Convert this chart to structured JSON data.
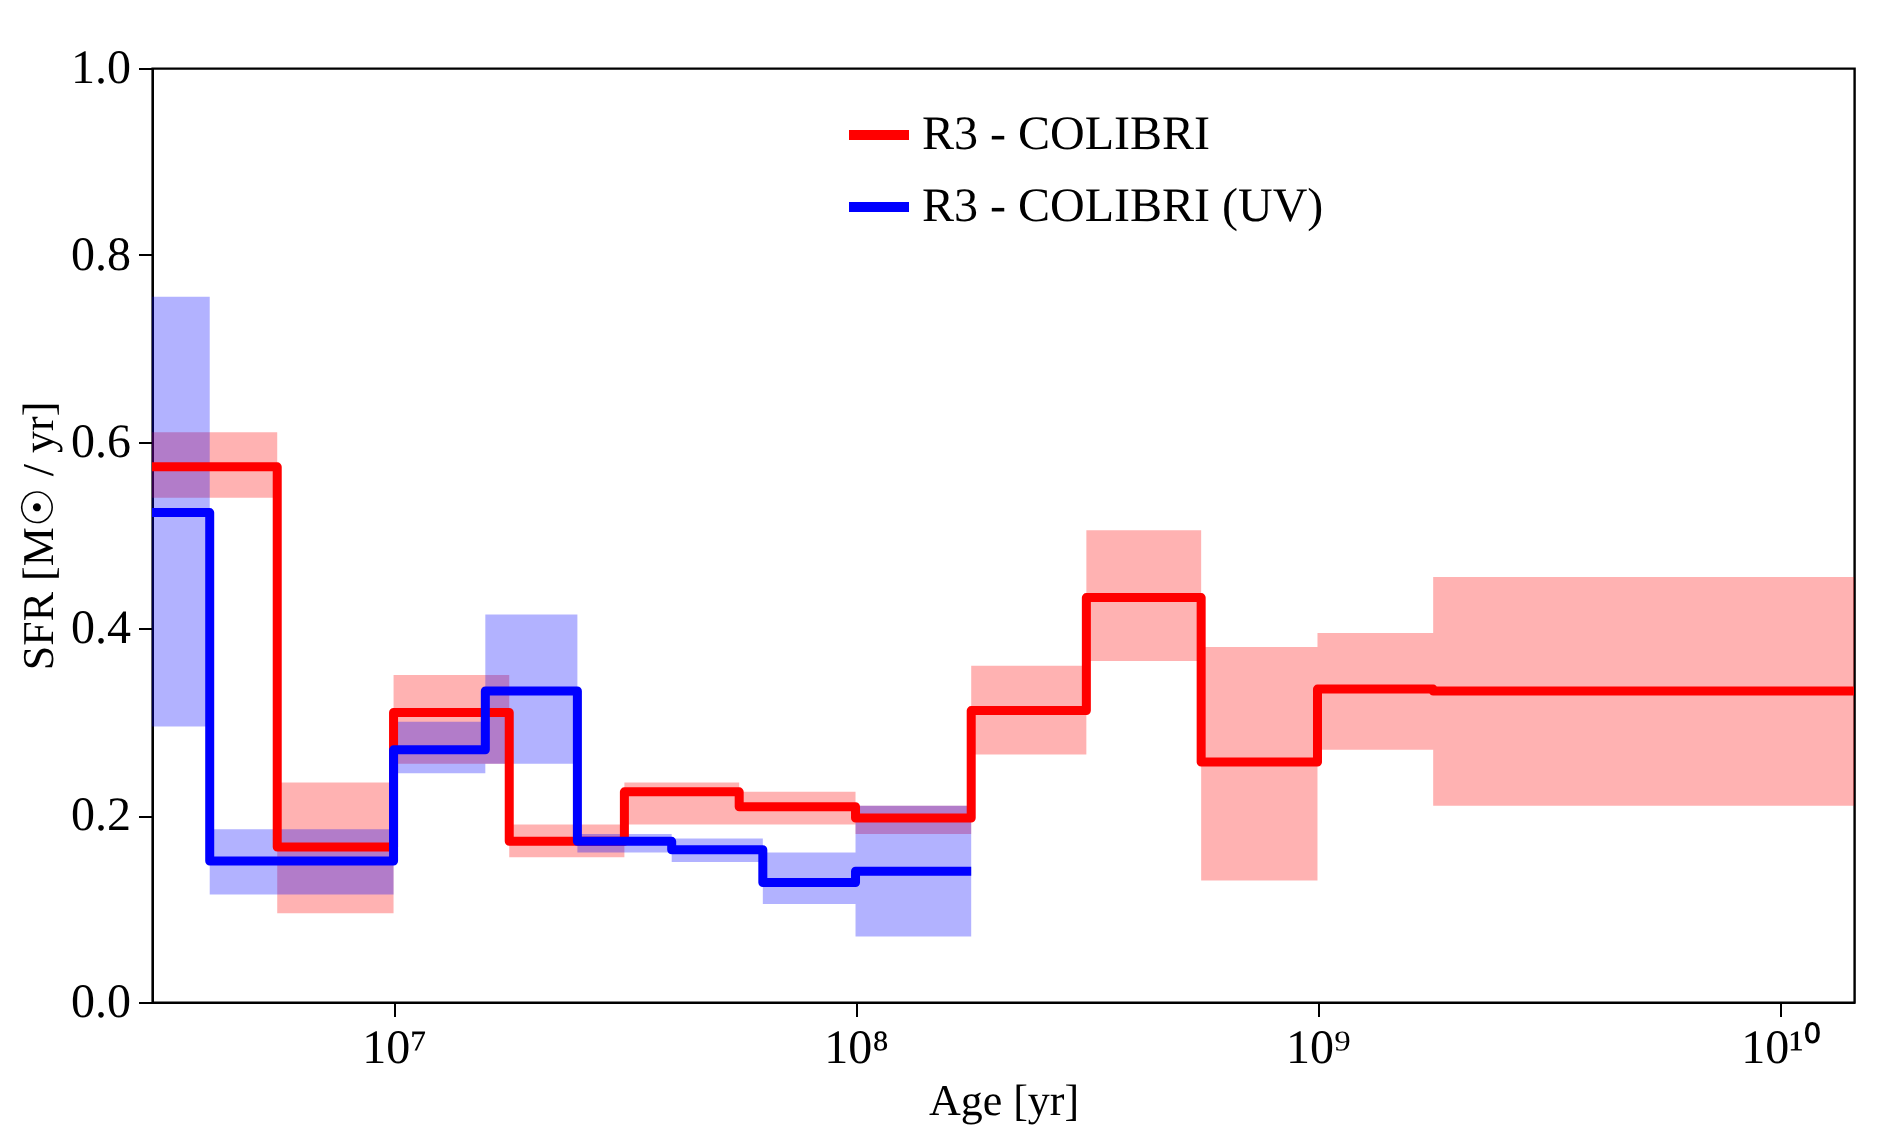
{
  "chart_data": {
    "type": "step",
    "xlabel": "Age [yr]",
    "ylabel": "SFR [M☉ / yr]",
    "log": "x",
    "xlim": [
      3000000,
      14500000000
    ],
    "xticks": [
      {
        "value": 10000000,
        "label": "10⁷"
      },
      {
        "value": 100000000,
        "label": "10⁸"
      },
      {
        "value": 1000000000,
        "label": "10⁹"
      },
      {
        "value": 10000000000,
        "label": "10¹⁰"
      }
    ],
    "ylim": [
      0,
      1
    ],
    "yticks": [
      {
        "value": 0,
        "label": "0.0"
      },
      {
        "value": 0.2,
        "label": "0.2"
      },
      {
        "value": 0.4,
        "label": "0.4"
      },
      {
        "value": 0.6,
        "label": "0.6"
      },
      {
        "value": 0.8,
        "label": "0.8"
      },
      {
        "value": 1,
        "label": "1.0"
      }
    ],
    "grid": false,
    "legend": "top",
    "line_style": "solid",
    "marker": "none",
    "series": [
      {
        "name": "R3 - COLIBRI",
        "color": "#ff0000",
        "x": [
          3000000,
          5600000,
          10000000,
          17800000,
          31600000,
          56000000,
          100000000,
          178000000,
          316000000,
          560000000,
          1000000000,
          1780000000,
          14500000000
        ],
        "values": [
          0.573,
          0.166,
          0.31,
          0.172,
          0.225,
          0.209,
          0.197,
          0.312,
          0.433,
          0.257,
          0.335,
          0.333,
          0.333
        ],
        "lower": [
          0.54,
          0.095,
          0.255,
          0.155,
          0.19,
          0.19,
          0.18,
          0.265,
          0.365,
          0.13,
          0.27,
          0.21,
          0.21
        ],
        "upper": [
          0.61,
          0.235,
          0.35,
          0.19,
          0.235,
          0.225,
          0.21,
          0.36,
          0.505,
          0.38,
          0.395,
          0.455,
          0.455
        ]
      },
      {
        "name": "R3 - COLIBRI (UV)",
        "color": "#0000ff",
        "x": [
          3000000,
          4000000,
          10000000,
          15800000,
          25000000,
          40000000,
          63000000,
          100000000,
          178000000
        ],
        "values": [
          0.524,
          0.151,
          0.27,
          0.333,
          0.172,
          0.163,
          0.128,
          0.14,
          0.14
        ],
        "lower": [
          0.295,
          0.115,
          0.245,
          0.255,
          0.16,
          0.15,
          0.105,
          0.07,
          0.07
        ],
        "upper": [
          0.755,
          0.185,
          0.3,
          0.415,
          0.18,
          0.175,
          0.16,
          0.21,
          0.21
        ]
      }
    ]
  }
}
